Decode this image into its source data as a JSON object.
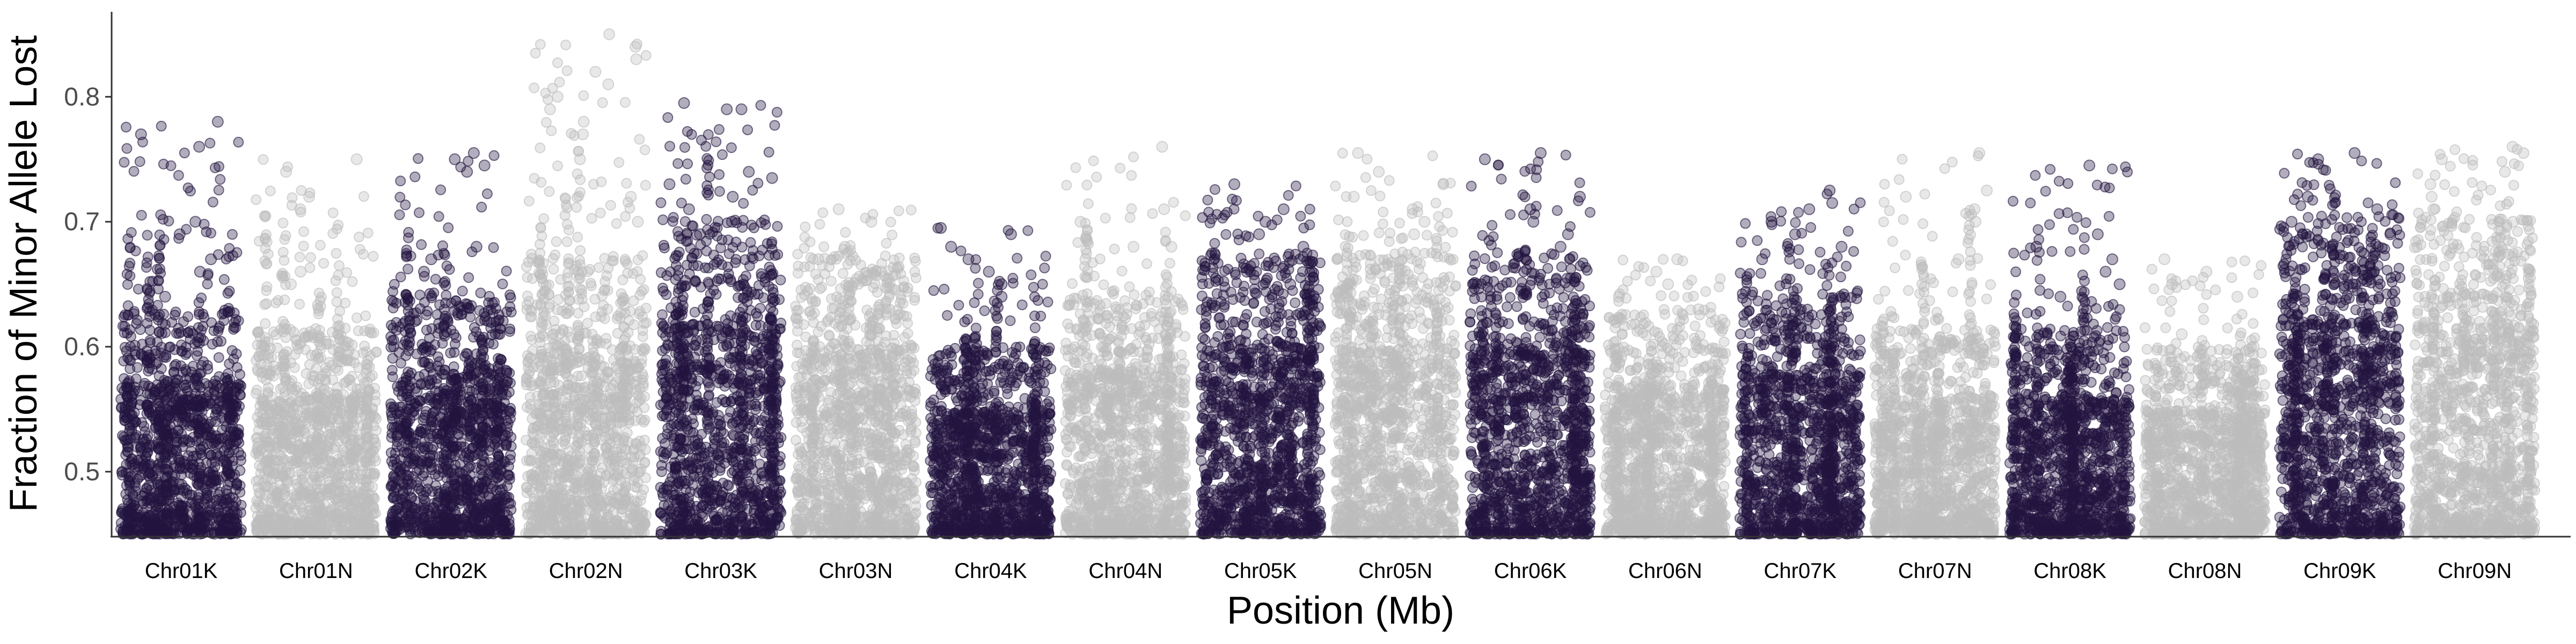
{
  "chart_data": {
    "type": "scatter",
    "title": "",
    "xlabel": "Position (Mb)",
    "ylabel": "Fraction of Minor Allele Lost",
    "ylim": [
      0.448,
      0.868
    ],
    "yticks": [
      0.5,
      0.6,
      0.7,
      0.8
    ],
    "grid": false,
    "legend": "none",
    "point_style": {
      "opacity": 0.35,
      "shape": "circle"
    },
    "colors": {
      "K": "#22143f",
      "N": "#bdbdbd"
    },
    "categories": [
      "Chr01K",
      "Chr01N",
      "Chr02K",
      "Chr02N",
      "Chr03K",
      "Chr03N",
      "Chr04K",
      "Chr04N",
      "Chr05K",
      "Chr05N",
      "Chr06K",
      "Chr06N",
      "Chr07K",
      "Chr07N",
      "Chr08K",
      "Chr08N",
      "Chr09K",
      "Chr09N"
    ],
    "series": [
      {
        "category": "Chr01K",
        "group": "K",
        "baseline": 0.45,
        "dense_top": 0.57,
        "peak": 0.78,
        "highlights": [
          0.78,
          0.77,
          0.76,
          0.7,
          0.69,
          0.67,
          0.66,
          0.64
        ]
      },
      {
        "category": "Chr01N",
        "group": "N",
        "baseline": 0.45,
        "dense_top": 0.56,
        "peak": 0.75,
        "highlights": [
          0.75,
          0.74,
          0.72,
          0.71,
          0.66,
          0.65
        ]
      },
      {
        "category": "Chr02K",
        "group": "K",
        "baseline": 0.45,
        "dense_top": 0.58,
        "peak": 0.755,
        "highlights": [
          0.755,
          0.75,
          0.745,
          0.74,
          0.68,
          0.67,
          0.66
        ]
      },
      {
        "category": "Chr02N",
        "group": "N",
        "baseline": 0.45,
        "dense_top": 0.6,
        "peak": 0.85,
        "highlights": [
          0.85,
          0.84,
          0.83,
          0.82,
          0.81,
          0.8,
          0.79,
          0.78,
          0.77,
          0.75,
          0.72,
          0.7
        ]
      },
      {
        "category": "Chr03K",
        "group": "K",
        "baseline": 0.45,
        "dense_top": 0.62,
        "peak": 0.795,
        "highlights": [
          0.795,
          0.79,
          0.79,
          0.74,
          0.735,
          0.73,
          0.72,
          0.71,
          0.7,
          0.69
        ]
      },
      {
        "category": "Chr03N",
        "group": "N",
        "baseline": 0.45,
        "dense_top": 0.6,
        "peak": 0.71,
        "highlights": [
          0.71,
          0.7,
          0.68,
          0.67,
          0.66
        ]
      },
      {
        "category": "Chr04K",
        "group": "K",
        "baseline": 0.45,
        "dense_top": 0.55,
        "peak": 0.695,
        "highlights": [
          0.695,
          0.69,
          0.68,
          0.67,
          0.66,
          0.65,
          0.64
        ]
      },
      {
        "category": "Chr04N",
        "group": "N",
        "baseline": 0.45,
        "dense_top": 0.58,
        "peak": 0.76,
        "highlights": [
          0.76,
          0.71,
          0.7,
          0.68,
          0.68,
          0.67
        ]
      },
      {
        "category": "Chr05K",
        "group": "K",
        "baseline": 0.45,
        "dense_top": 0.6,
        "peak": 0.73,
        "highlights": [
          0.73,
          0.71,
          0.7,
          0.69,
          0.68,
          0.66,
          0.65
        ]
      },
      {
        "category": "Chr05N",
        "group": "N",
        "baseline": 0.45,
        "dense_top": 0.6,
        "peak": 0.755,
        "highlights": [
          0.755,
          0.74,
          0.73,
          0.72,
          0.71,
          0.7,
          0.69
        ]
      },
      {
        "category": "Chr06K",
        "group": "K",
        "baseline": 0.45,
        "dense_top": 0.6,
        "peak": 0.755,
        "highlights": [
          0.755,
          0.75,
          0.72,
          0.71,
          0.7,
          0.69,
          0.68
        ]
      },
      {
        "category": "Chr06N",
        "group": "N",
        "baseline": 0.45,
        "dense_top": 0.57,
        "peak": 0.67,
        "highlights": [
          0.67,
          0.66,
          0.65,
          0.64,
          0.63
        ]
      },
      {
        "category": "Chr07K",
        "group": "K",
        "baseline": 0.45,
        "dense_top": 0.58,
        "peak": 0.725,
        "highlights": [
          0.725,
          0.715,
          0.71,
          0.7,
          0.69,
          0.68,
          0.67
        ]
      },
      {
        "category": "Chr07N",
        "group": "N",
        "baseline": 0.45,
        "dense_top": 0.56,
        "peak": 0.755,
        "highlights": [
          0.755,
          0.725,
          0.72,
          0.71,
          0.7,
          0.67
        ]
      },
      {
        "category": "Chr08K",
        "group": "K",
        "baseline": 0.45,
        "dense_top": 0.56,
        "peak": 0.745,
        "highlights": [
          0.745,
          0.69,
          0.68,
          0.67,
          0.66,
          0.65,
          0.64
        ]
      },
      {
        "category": "Chr08N",
        "group": "N",
        "baseline": 0.45,
        "dense_top": 0.55,
        "peak": 0.67,
        "highlights": [
          0.67,
          0.66,
          0.65,
          0.64,
          0.61,
          0.6
        ]
      },
      {
        "category": "Chr09K",
        "group": "K",
        "baseline": 0.45,
        "dense_top": 0.62,
        "peak": 0.755,
        "highlights": [
          0.755,
          0.75,
          0.72,
          0.71,
          0.7,
          0.69,
          0.68
        ]
      },
      {
        "category": "Chr09N",
        "group": "N",
        "baseline": 0.45,
        "dense_top": 0.62,
        "peak": 0.76,
        "highlights": [
          0.76,
          0.755,
          0.75,
          0.74,
          0.73,
          0.72,
          0.71,
          0.7
        ]
      }
    ]
  }
}
